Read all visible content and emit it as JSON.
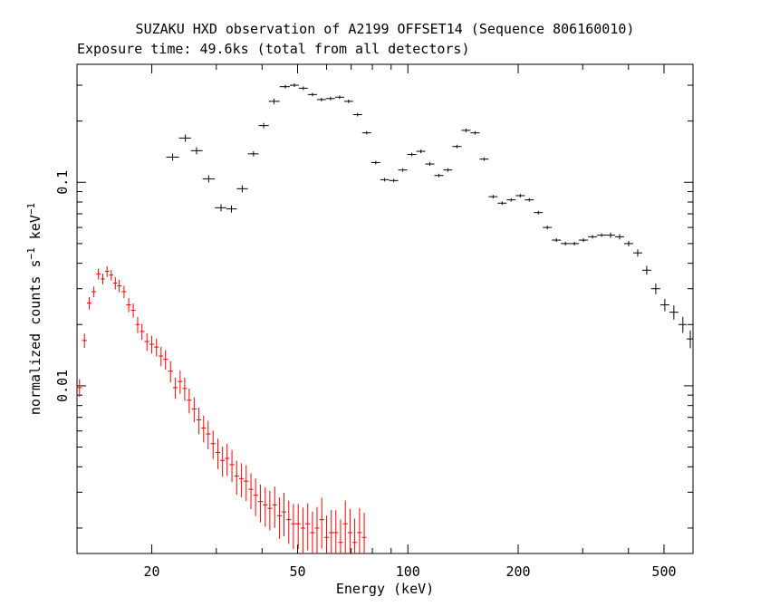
{
  "chart_data": {
    "type": "scatter",
    "title": "SUZAKU HXD observation of A2199 OFFSET14 (Sequence 806160010)",
    "subtitle": "Exposure time: 49.6ks (total from all detectors)",
    "xlabel": "Energy (keV)",
    "ylabel": "normalized counts s",
    "ylabel_sup1": "−1",
    "ylabel_mid": " keV",
    "ylabel_sup2": "−1",
    "x_scale": "log",
    "y_scale": "log",
    "xlim": [
      12.5,
      600
    ],
    "ylim": [
      0.0015,
      0.38
    ],
    "x_ticks": [
      {
        "value": 20,
        "label": "20"
      },
      {
        "value": 50,
        "label": "50"
      },
      {
        "value": 100,
        "label": "100"
      },
      {
        "value": 200,
        "label": "200"
      },
      {
        "value": 500,
        "label": "500"
      }
    ],
    "y_ticks": [
      {
        "value": 0.01,
        "label": "0.01"
      },
      {
        "value": 0.1,
        "label": "0.1"
      }
    ],
    "legend": "none",
    "grid": false,
    "series": [
      {
        "color": "#000000",
        "error_bars": true,
        "x": [
          22.8,
          24.7,
          26.5,
          28.6,
          30.9,
          33.0,
          35.3,
          37.9,
          40.4,
          43.1,
          46.3,
          49.0,
          51.8,
          54.9,
          58.1,
          61.5,
          65.1,
          68.9,
          72.9,
          77.2,
          81.7,
          86.4,
          91.5,
          96.8,
          102.5,
          108.5,
          114.8,
          121.5,
          128.6,
          136.1,
          144.1,
          152.5,
          161.4,
          170.8,
          180.8,
          191.4,
          202.6,
          214.4,
          227.0,
          240.2,
          254.3,
          269.1,
          284.8,
          301.5,
          319.1,
          337.8,
          357.5,
          378.4,
          400.5,
          423.9,
          448.6,
          474.8,
          502.6,
          532.0,
          563.0,
          590.0
        ],
        "y": [
          0.133,
          0.165,
          0.143,
          0.104,
          0.075,
          0.074,
          0.093,
          0.138,
          0.19,
          0.25,
          0.295,
          0.3,
          0.29,
          0.27,
          0.255,
          0.258,
          0.262,
          0.25,
          0.215,
          0.175,
          0.125,
          0.103,
          0.102,
          0.115,
          0.137,
          0.142,
          0.123,
          0.108,
          0.115,
          0.15,
          0.18,
          0.175,
          0.13,
          0.085,
          0.079,
          0.082,
          0.086,
          0.082,
          0.071,
          0.06,
          0.052,
          0.05,
          0.05,
          0.052,
          0.054,
          0.055,
          0.055,
          0.054,
          0.05,
          0.045,
          0.037,
          0.03,
          0.025,
          0.023,
          0.02,
          0.017
        ],
        "yerr_frac": [
          0.04,
          0.04,
          0.04,
          0.04,
          0.04,
          0.04,
          0.04,
          0.03,
          0.03,
          0.03,
          0.02,
          0.02,
          0.02,
          0.02,
          0.02,
          0.02,
          0.02,
          0.02,
          0.02,
          0.02,
          0.02,
          0.02,
          0.02,
          0.02,
          0.02,
          0.02,
          0.02,
          0.02,
          0.02,
          0.02,
          0.02,
          0.02,
          0.02,
          0.02,
          0.02,
          0.02,
          0.02,
          0.02,
          0.02,
          0.02,
          0.02,
          0.02,
          0.02,
          0.02,
          0.02,
          0.02,
          0.03,
          0.03,
          0.03,
          0.04,
          0.05,
          0.06,
          0.07,
          0.08,
          0.09,
          0.1
        ]
      },
      {
        "color": "#ff0000",
        "error_bars": true,
        "x": [
          12.7,
          13.1,
          13.5,
          13.9,
          14.3,
          14.7,
          15.1,
          15.5,
          15.9,
          16.3,
          16.8,
          17.3,
          17.8,
          18.3,
          18.8,
          19.4,
          20.0,
          20.6,
          21.2,
          21.8,
          22.5,
          23.2,
          23.9,
          24.6,
          25.3,
          26.1,
          26.9,
          27.7,
          28.5,
          29.4,
          30.3,
          31.2,
          32.1,
          33.1,
          34.1,
          35.1,
          36.2,
          37.3,
          38.4,
          39.6,
          40.8,
          42.0,
          43.3,
          44.6,
          45.9,
          47.3,
          48.7,
          50.2,
          51.7,
          53.3,
          54.9,
          56.5,
          58.2,
          60.0,
          61.8,
          63.6,
          65.5,
          67.5,
          69.5,
          71.6,
          73.8,
          76.0
        ],
        "y": [
          0.0098,
          0.0167,
          0.0255,
          0.029,
          0.0355,
          0.0335,
          0.0365,
          0.035,
          0.032,
          0.031,
          0.029,
          0.025,
          0.0235,
          0.02,
          0.0185,
          0.0165,
          0.016,
          0.0155,
          0.014,
          0.0135,
          0.0118,
          0.0098,
          0.0105,
          0.0097,
          0.0085,
          0.0077,
          0.0068,
          0.0062,
          0.0058,
          0.0052,
          0.0047,
          0.0043,
          0.0044,
          0.0041,
          0.0036,
          0.0035,
          0.0034,
          0.0031,
          0.0029,
          0.0027,
          0.0026,
          0.0025,
          0.0026,
          0.0023,
          0.0024,
          0.0022,
          0.0021,
          0.0021,
          0.002,
          0.0021,
          0.0019,
          0.002,
          0.0022,
          0.0018,
          0.0019,
          0.0019,
          0.0017,
          0.0021,
          0.0019,
          0.0017,
          0.0019,
          0.0018
        ],
        "yerr_frac": [
          0.1,
          0.08,
          0.07,
          0.06,
          0.06,
          0.06,
          0.06,
          0.06,
          0.07,
          0.07,
          0.07,
          0.08,
          0.08,
          0.09,
          0.09,
          0.1,
          0.1,
          0.1,
          0.11,
          0.11,
          0.12,
          0.12,
          0.13,
          0.13,
          0.14,
          0.14,
          0.15,
          0.15,
          0.16,
          0.16,
          0.17,
          0.17,
          0.18,
          0.18,
          0.19,
          0.19,
          0.2,
          0.2,
          0.21,
          0.21,
          0.22,
          0.22,
          0.23,
          0.23,
          0.24,
          0.24,
          0.25,
          0.25,
          0.26,
          0.26,
          0.27,
          0.27,
          0.28,
          0.28,
          0.29,
          0.29,
          0.3,
          0.3,
          0.31,
          0.31,
          0.32,
          0.32
        ]
      }
    ]
  }
}
